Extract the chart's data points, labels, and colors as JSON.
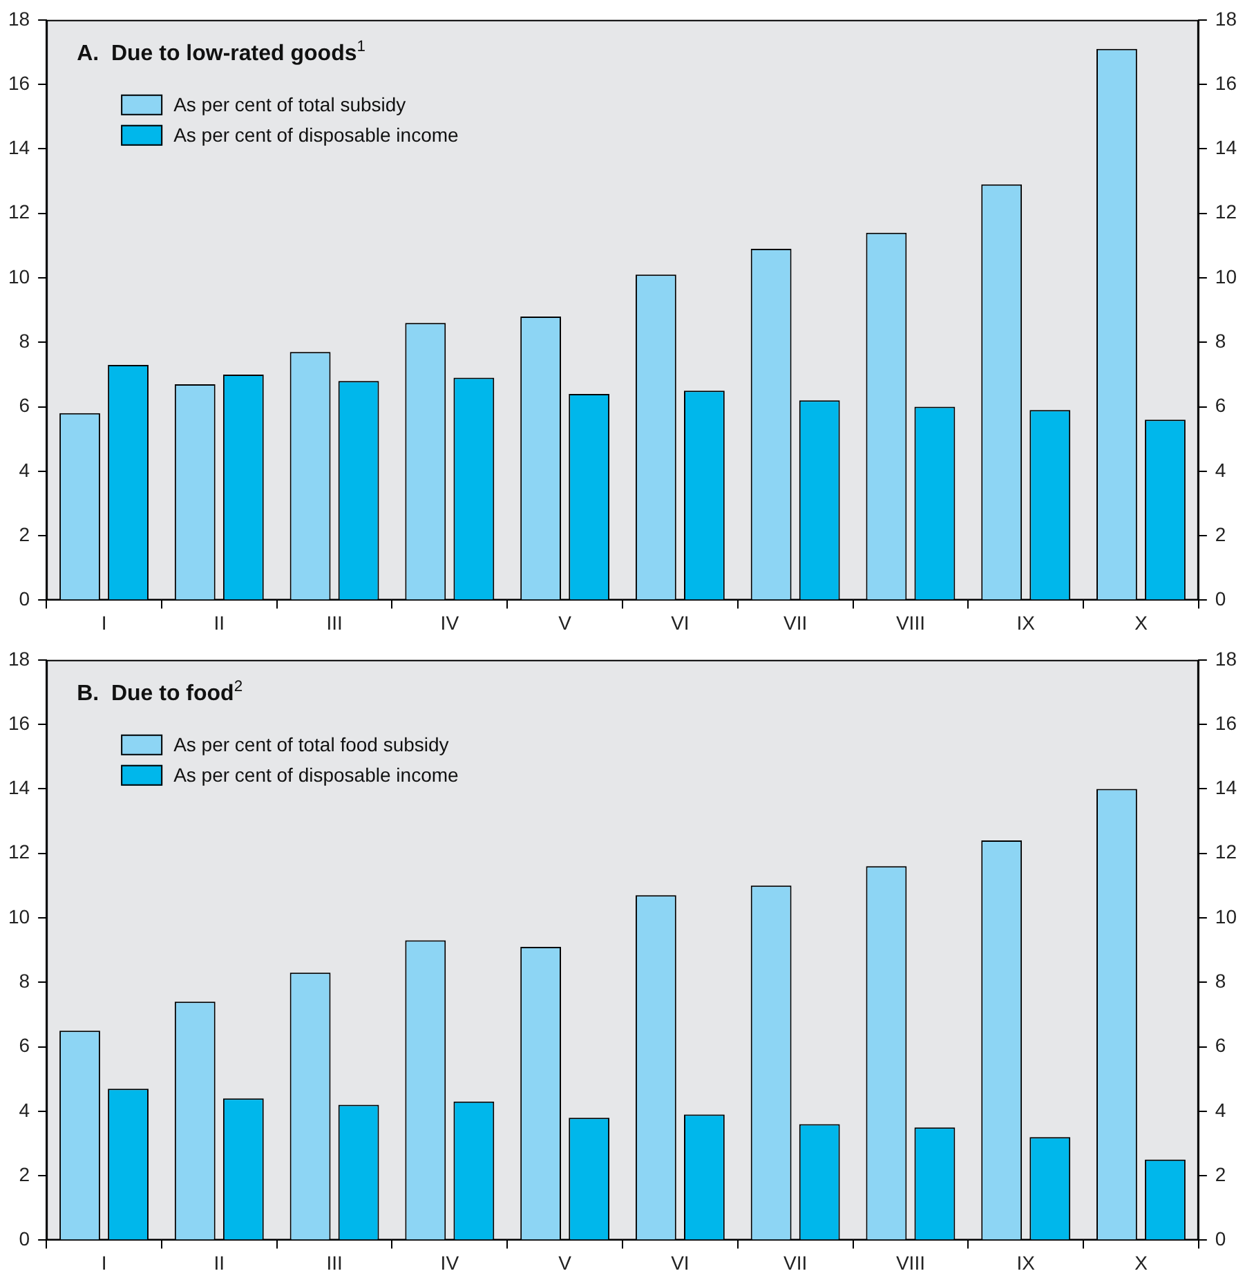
{
  "chart_data": [
    {
      "type": "bar",
      "title": "A.  Due to low-rated goods$^{1}$",
      "categories": [
        "I",
        "II",
        "III",
        "IV",
        "V",
        "VI",
        "VII",
        "VIII",
        "IX",
        "X"
      ],
      "series": [
        {
          "name": "As per cent of total subsidy",
          "color": "#8dd5f4",
          "values": [
            5.8,
            6.7,
            7.7,
            8.6,
            8.8,
            10.1,
            10.9,
            11.4,
            12.9,
            17.1
          ]
        },
        {
          "name": "As per cent of disposable income",
          "color": "#00b7eb",
          "values": [
            7.3,
            7.0,
            6.8,
            6.9,
            6.4,
            6.5,
            6.2,
            6.0,
            5.9,
            5.6
          ]
        }
      ],
      "ylim": [
        0,
        18
      ],
      "yticks": [
        0,
        2,
        4,
        6,
        8,
        10,
        12,
        14,
        16,
        18
      ],
      "y2lim": [
        0,
        18
      ],
      "y2ticks": [
        0,
        2,
        4,
        6,
        8,
        10,
        12,
        14,
        16,
        18
      ],
      "grid": false,
      "legend": "top left"
    },
    {
      "type": "bar",
      "title": "B.  Due to food$^{2}$",
      "categories": [
        "I",
        "II",
        "III",
        "IV",
        "V",
        "VI",
        "VII",
        "VIII",
        "IX",
        "X"
      ],
      "series": [
        {
          "name": "As per cent of total food subsidy",
          "color": "#8dd5f4",
          "values": [
            6.5,
            7.4,
            8.3,
            9.3,
            9.1,
            10.7,
            11.0,
            11.6,
            12.4,
            14.0
          ]
        },
        {
          "name": "As per cent of disposable income",
          "color": "#00b7eb",
          "values": [
            4.7,
            4.4,
            4.2,
            4.3,
            3.8,
            3.9,
            3.6,
            3.5,
            3.2,
            2.5
          ]
        }
      ],
      "ylim": [
        0,
        18
      ],
      "yticks": [
        0,
        2,
        4,
        6,
        8,
        10,
        12,
        14,
        16,
        18
      ],
      "y2lim": [
        0,
        18
      ],
      "y2ticks": [
        0,
        2,
        4,
        6,
        8,
        10,
        12,
        14,
        16,
        18
      ],
      "grid": false,
      "legend": "top left"
    }
  ]
}
